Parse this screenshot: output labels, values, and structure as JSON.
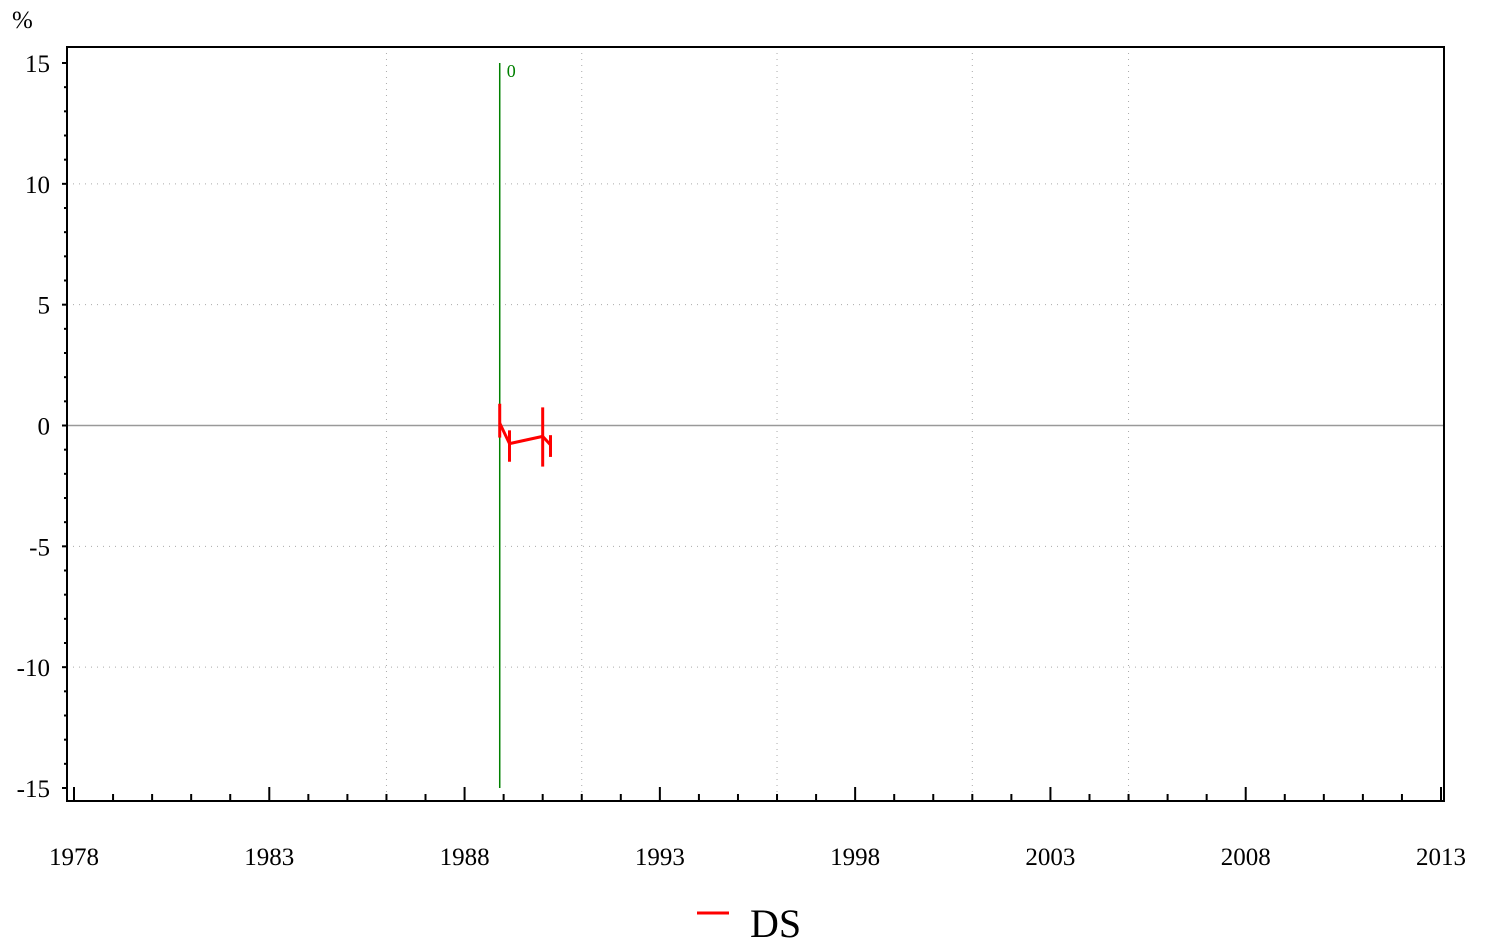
{
  "chart_data": {
    "type": "line",
    "ylabel": "%",
    "xlim": [
      1978,
      2013
    ],
    "ylim": [
      -15,
      15
    ],
    "x_ticks": [
      "1978",
      "1983",
      "1988",
      "1993",
      "1998",
      "2003",
      "2008",
      "2013"
    ],
    "y_ticks": [
      "15",
      "10",
      "5",
      "0",
      "-5",
      "-10",
      "-15"
    ],
    "grid": true,
    "legend_position": "bottom-center",
    "reference_line": {
      "x": 1988.9,
      "label": "0",
      "color": "#008000"
    },
    "series": [
      {
        "name": "DS",
        "color": "#ff0000",
        "points": [
          {
            "x": 1988.9,
            "y": 0.1,
            "low": -0.5,
            "high": 0.9
          },
          {
            "x": 1989.15,
            "y": -0.75,
            "low": -1.5,
            "high": -0.2
          },
          {
            "x": 1990.0,
            "y": -0.45,
            "low": -1.7,
            "high": 0.75
          },
          {
            "x": 1990.2,
            "y": -0.8,
            "low": -1.3,
            "high": -0.4
          }
        ]
      }
    ]
  }
}
